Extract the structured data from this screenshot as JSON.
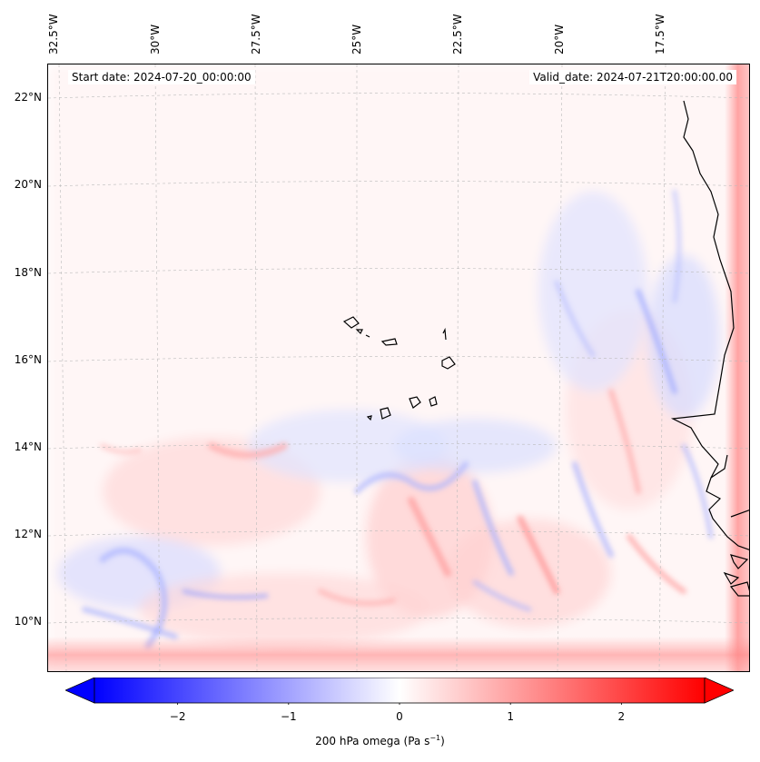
{
  "map": {
    "start_date": "Start date: 2024-07-20_00:00:00",
    "valid_date": "Valid_date: 2024-07-21T20:00:00.00",
    "lon_labels": [
      "32.5°W",
      "30°W",
      "27.5°W",
      "25°W",
      "22.5°W",
      "20°W",
      "17.5°W"
    ],
    "lat_labels": [
      "22°N",
      "20°N",
      "18°N",
      "16°N",
      "14°N",
      "12°N",
      "10°N"
    ],
    "grid": true,
    "coastline_color": "#000000"
  },
  "colorbar": {
    "title_main": "200 hPa omega (Pa s",
    "title_exp": "−1",
    "title_end": ")",
    "min": -2.75,
    "max": 2.75,
    "ticks": [
      {
        "value": -2,
        "label": "−2"
      },
      {
        "value": -1,
        "label": "−1"
      },
      {
        "value": 0,
        "label": "0"
      },
      {
        "value": 1,
        "label": "1"
      },
      {
        "value": 2,
        "label": "2"
      }
    ],
    "cmap": "bwr",
    "negative_color": "#0000ff",
    "zero_color": "#ffffff",
    "positive_color": "#ff0000"
  }
}
